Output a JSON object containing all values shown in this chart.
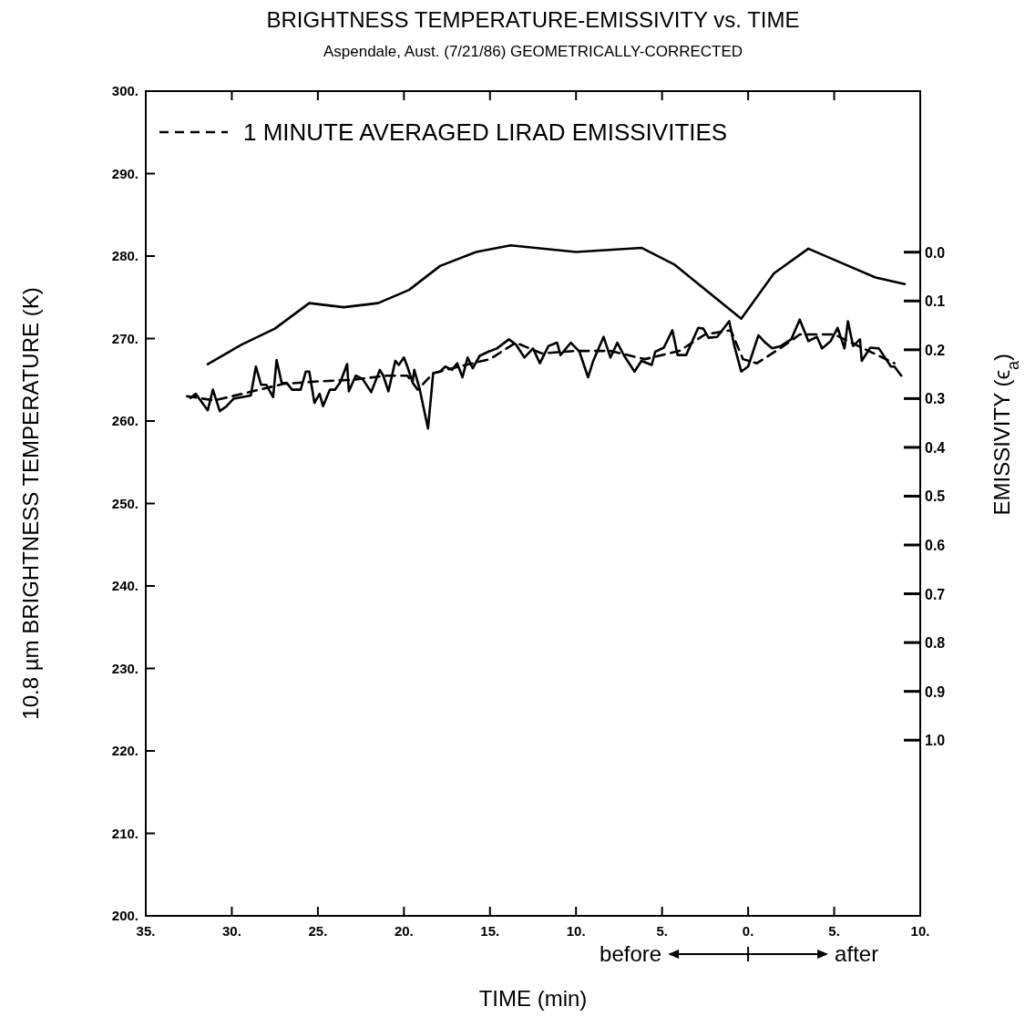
{
  "chart_data": {
    "type": "line",
    "title": "BRIGHTNESS TEMPERATURE-EMISSIVITY vs. TIME",
    "subtitle": "Aspendale, Aust. (7/21/86)    GEOMETRICALLY-CORRECTED",
    "xlabel": "TIME (min)",
    "ylabel": "10.8 µm BRIGHTNESS TEMPERATURE (K)",
    "y2label": "EMISSIVITY (ϵ$_{a}$)",
    "annotations": [
      "before",
      "after"
    ],
    "xlim": [
      -35,
      10
    ],
    "xticks": [
      {
        "value": -35,
        "label": "35."
      },
      {
        "value": -30,
        "label": "30."
      },
      {
        "value": -25,
        "label": "25."
      },
      {
        "value": -20,
        "label": "20."
      },
      {
        "value": -15,
        "label": "15."
      },
      {
        "value": -10,
        "label": "10."
      },
      {
        "value": -5,
        "label": "5."
      },
      {
        "value": 0,
        "label": "0."
      },
      {
        "value": 5,
        "label": "5."
      },
      {
        "value": 10,
        "label": "10."
      }
    ],
    "ylim": [
      200,
      300
    ],
    "yticks": [
      {
        "value": 200,
        "label": "200."
      },
      {
        "value": 210,
        "label": "210."
      },
      {
        "value": 220,
        "label": "220."
      },
      {
        "value": 230,
        "label": "230."
      },
      {
        "value": 240,
        "label": "240."
      },
      {
        "value": 250,
        "label": "250."
      },
      {
        "value": 260,
        "label": "260."
      },
      {
        "value": 270,
        "label": "270."
      },
      {
        "value": 280,
        "label": "280."
      },
      {
        "value": 290,
        "label": "290."
      },
      {
        "value": 300,
        "label": "300."
      }
    ],
    "y2lim": [
      1.36,
      -0.33
    ],
    "y2ticks": [
      {
        "value": 0.0,
        "label": "0.0"
      },
      {
        "value": 0.1,
        "label": "0.1"
      },
      {
        "value": 0.2,
        "label": "0.2"
      },
      {
        "value": 0.3,
        "label": "0.3"
      },
      {
        "value": 0.4,
        "label": "0.4"
      },
      {
        "value": 0.5,
        "label": "0.5"
      },
      {
        "value": 0.6,
        "label": "0.6"
      },
      {
        "value": 0.7,
        "label": "0.7"
      },
      {
        "value": 0.8,
        "label": "0.8"
      },
      {
        "value": 0.9,
        "label": "0.9"
      },
      {
        "value": 1.0,
        "label": "1.0"
      }
    ],
    "grid": false,
    "legend": "top left",
    "marker": "none",
    "series": [
      {
        "color": "#000000",
        "line_style": "solid",
        "x": [
          -31.4,
          -29.4,
          -27.5,
          -25.5,
          -23.5,
          -21.5,
          -19.7,
          -17.9,
          -15.8,
          -13.8,
          -10.0,
          -6.2,
          -4.3,
          -0.4,
          1.5,
          3.5,
          5.5,
          7.4,
          9.1
        ],
        "values": [
          266.9,
          269.3,
          271.2,
          274.3,
          273.8,
          274.3,
          275.9,
          278.8,
          280.5,
          281.3,
          280.5,
          281.0,
          279.0,
          272.4,
          277.9,
          280.9,
          279.1,
          277.4,
          276.6
        ]
      },
      {
        "color": "#000000",
        "line_style": "solid",
        "x": [
          -32.4,
          -32.1,
          -31.4,
          -31.1,
          -30.7,
          -30.3,
          -29.9,
          -29.4,
          -28.9,
          -28.6,
          -28.3,
          -28.0,
          -27.6,
          -27.4,
          -27.1,
          -26.8,
          -26.5,
          -26.0,
          -25.7,
          -25.5,
          -25.2,
          -24.9,
          -24.7,
          -24.3,
          -24.0,
          -23.7,
          -23.3,
          -23.2,
          -22.8,
          -22.4,
          -21.9,
          -21.4,
          -21.2,
          -20.9,
          -20.5,
          -20.3,
          -20.0,
          -19.8,
          -19.5,
          -19.4,
          -19.1,
          -18.6,
          -18.3,
          -17.9,
          -17.6,
          -17.2,
          -16.9,
          -16.6,
          -16.3,
          -16.0,
          -15.6,
          -15.1,
          -14.6,
          -13.9,
          -13.5,
          -13.0,
          -12.5,
          -12.1,
          -11.6,
          -11.1,
          -10.9,
          -10.3,
          -9.8,
          -9.3,
          -9.0,
          -8.4,
          -8.0,
          -7.6,
          -7.2,
          -6.6,
          -6.2,
          -5.6,
          -5.4,
          -4.9,
          -4.4,
          -4.1,
          -3.6,
          -2.9,
          -2.6,
          -2.3,
          -1.8,
          -1.1,
          -0.8,
          -0.4,
          0.0,
          0.6,
          1.0,
          1.4,
          1.9,
          2.5,
          3.0,
          3.5,
          4.0,
          4.3,
          4.8,
          5.2,
          5.6,
          5.8,
          6.1,
          6.5,
          6.6,
          7.1,
          7.6,
          8.3,
          8.5,
          8.9
        ],
        "values": [
          262.8,
          263.3,
          261.3,
          263.8,
          261.2,
          261.8,
          262.7,
          262.9,
          263.1,
          266.6,
          264.4,
          264.4,
          262.9,
          267.4,
          264.6,
          264.6,
          263.8,
          263.8,
          266.0,
          266.0,
          262.2,
          263.3,
          261.8,
          263.8,
          263.8,
          264.7,
          266.9,
          263.6,
          265.5,
          265.1,
          263.5,
          266.2,
          265.5,
          263.6,
          267.3,
          266.8,
          267.7,
          266.6,
          264.7,
          266.2,
          264.0,
          259.1,
          265.8,
          266.0,
          266.6,
          266.2,
          267.0,
          265.3,
          267.7,
          266.4,
          267.9,
          268.4,
          268.8,
          269.9,
          269.3,
          267.7,
          268.8,
          267.0,
          269.1,
          269.5,
          268.0,
          269.5,
          268.4,
          265.3,
          267.3,
          270.2,
          267.7,
          269.5,
          267.9,
          266.0,
          267.3,
          266.8,
          268.4,
          268.9,
          271.0,
          268.0,
          268.0,
          271.3,
          271.2,
          270.1,
          270.2,
          272.1,
          269.1,
          266.0,
          266.6,
          270.4,
          269.5,
          268.8,
          269.1,
          269.9,
          272.3,
          269.7,
          270.2,
          268.8,
          269.7,
          271.3,
          268.8,
          272.1,
          269.1,
          269.9,
          267.3,
          268.9,
          268.8,
          266.6,
          266.6,
          265.5
        ]
      },
      {
        "name": "1 MINUTE AVERAGED LIRAD EMISSIVITIES",
        "color": "#000000",
        "line_style": "dashed",
        "x": [
          -32.6,
          -31,
          -29,
          -27,
          -25,
          -23,
          -21,
          -19.8,
          -19.2,
          -18.3,
          -17,
          -15,
          -13.5,
          -12,
          -10,
          -8,
          -6,
          -4,
          -2.5,
          -1,
          -0.3,
          0.5,
          2,
          3,
          5,
          7,
          8.5
        ],
        "values": [
          263.0,
          262.5,
          263.5,
          264.5,
          264.8,
          265.0,
          265.5,
          265.5,
          263.8,
          265.8,
          266.5,
          267.5,
          269.5,
          268.2,
          268.5,
          268.5,
          267.5,
          268.5,
          270.5,
          271.0,
          267.5,
          267.0,
          269.0,
          270.5,
          270.5,
          268.5,
          267.0
        ]
      }
    ]
  }
}
